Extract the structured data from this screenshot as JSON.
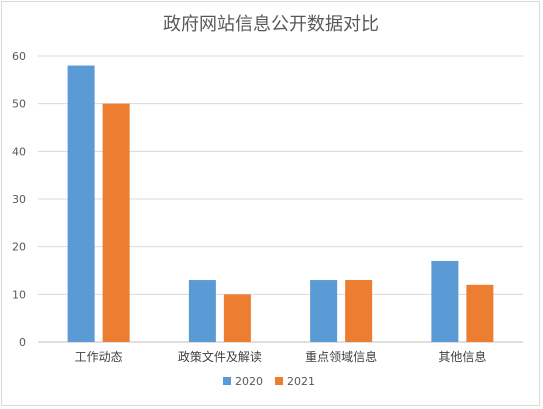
{
  "chart_data": {
    "type": "bar",
    "title": "政府网站信息公开数据对比",
    "categories": [
      "工作动态",
      "政策文件及解读",
      "重点领域信息",
      "其他信息"
    ],
    "series": [
      {
        "name": "2020",
        "values": [
          58,
          13,
          13,
          17
        ],
        "color": "#5b9bd5"
      },
      {
        "name": "2021",
        "values": [
          50,
          10,
          13,
          12
        ],
        "color": "#ed7d31"
      }
    ],
    "ylim": [
      0,
      60
    ],
    "yticks": [
      0,
      10,
      20,
      30,
      40,
      50,
      60
    ],
    "grid": true,
    "legend": "bottom"
  }
}
